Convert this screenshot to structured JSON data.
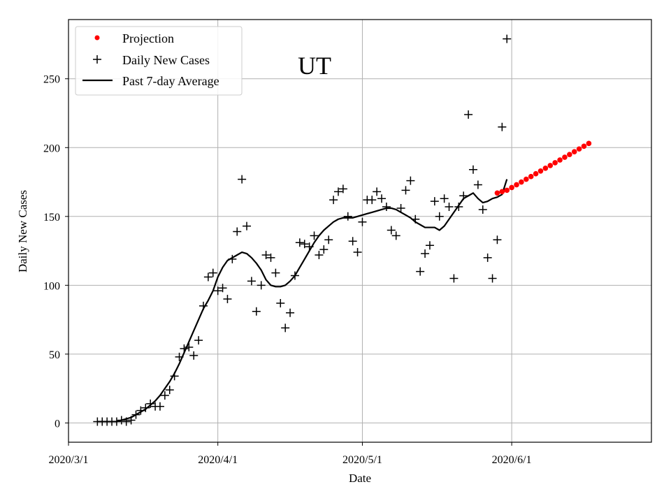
{
  "chart_data": {
    "type": "line",
    "annotation": "UT",
    "xlabel": "Date",
    "ylabel": "Daily New Cases",
    "x_range": [
      "2020-03-01",
      "2020-06-30"
    ],
    "ylim": [
      -14,
      293
    ],
    "x_ticks": [
      {
        "date": "2020-03-01",
        "label": "2020/3/1"
      },
      {
        "date": "2020-04-01",
        "label": "2020/4/1"
      },
      {
        "date": "2020-05-01",
        "label": "2020/5/1"
      },
      {
        "date": "2020-06-01",
        "label": "2020/6/1"
      }
    ],
    "y_ticks": [
      0,
      50,
      100,
      150,
      200,
      250
    ],
    "grid": true,
    "legend_position": "top-left",
    "series": [
      {
        "name": "Projection",
        "kind": "scatter",
        "marker": "dot",
        "color": "#ff0000",
        "points": [
          [
            "2020-05-29",
            167
          ],
          [
            "2020-05-30",
            168
          ],
          [
            "2020-05-31",
            169
          ],
          [
            "2020-06-01",
            171
          ],
          [
            "2020-06-02",
            173
          ],
          [
            "2020-06-03",
            175
          ],
          [
            "2020-06-04",
            177
          ],
          [
            "2020-06-05",
            179
          ],
          [
            "2020-06-06",
            181
          ],
          [
            "2020-06-07",
            183
          ],
          [
            "2020-06-08",
            185
          ],
          [
            "2020-06-09",
            187
          ],
          [
            "2020-06-10",
            189
          ],
          [
            "2020-06-11",
            191
          ],
          [
            "2020-06-12",
            193
          ],
          [
            "2020-06-13",
            195
          ],
          [
            "2020-06-14",
            197
          ],
          [
            "2020-06-15",
            199
          ],
          [
            "2020-06-16",
            201
          ],
          [
            "2020-06-17",
            203
          ]
        ]
      },
      {
        "name": "Daily New Cases",
        "kind": "scatter",
        "marker": "plus",
        "color": "#000000",
        "points": [
          [
            "2020-03-07",
            1
          ],
          [
            "2020-03-08",
            1
          ],
          [
            "2020-03-09",
            1
          ],
          [
            "2020-03-10",
            1
          ],
          [
            "2020-03-11",
            1
          ],
          [
            "2020-03-12",
            2
          ],
          [
            "2020-03-13",
            1
          ],
          [
            "2020-03-14",
            2
          ],
          [
            "2020-03-15",
            6
          ],
          [
            "2020-03-16",
            9
          ],
          [
            "2020-03-17",
            11
          ],
          [
            "2020-03-18",
            14
          ],
          [
            "2020-03-19",
            12
          ],
          [
            "2020-03-20",
            12
          ],
          [
            "2020-03-21",
            20
          ],
          [
            "2020-03-22",
            24
          ],
          [
            "2020-03-23",
            34
          ],
          [
            "2020-03-24",
            48
          ],
          [
            "2020-03-25",
            54
          ],
          [
            "2020-03-26",
            55
          ],
          [
            "2020-03-27",
            49
          ],
          [
            "2020-03-28",
            60
          ],
          [
            "2020-03-29",
            85
          ],
          [
            "2020-03-30",
            106
          ],
          [
            "2020-03-31",
            109
          ],
          [
            "2020-04-01",
            96
          ],
          [
            "2020-04-02",
            98
          ],
          [
            "2020-04-03",
            90
          ],
          [
            "2020-04-04",
            119
          ],
          [
            "2020-04-05",
            139
          ],
          [
            "2020-04-06",
            177
          ],
          [
            "2020-04-07",
            143
          ],
          [
            "2020-04-08",
            103
          ],
          [
            "2020-04-09",
            81
          ],
          [
            "2020-04-10",
            100
          ],
          [
            "2020-04-11",
            122
          ],
          [
            "2020-04-12",
            120
          ],
          [
            "2020-04-13",
            109
          ],
          [
            "2020-04-14",
            87
          ],
          [
            "2020-04-15",
            69
          ],
          [
            "2020-04-16",
            80
          ],
          [
            "2020-04-17",
            107
          ],
          [
            "2020-04-18",
            131
          ],
          [
            "2020-04-19",
            130
          ],
          [
            "2020-04-20",
            128
          ],
          [
            "2020-04-21",
            136
          ],
          [
            "2020-04-22",
            122
          ],
          [
            "2020-04-23",
            126
          ],
          [
            "2020-04-24",
            133
          ],
          [
            "2020-04-25",
            162
          ],
          [
            "2020-04-26",
            168
          ],
          [
            "2020-04-27",
            170
          ],
          [
            "2020-04-28",
            150
          ],
          [
            "2020-04-29",
            132
          ],
          [
            "2020-04-30",
            124
          ],
          [
            "2020-05-01",
            146
          ],
          [
            "2020-05-02",
            162
          ],
          [
            "2020-05-03",
            162
          ],
          [
            "2020-05-04",
            168
          ],
          [
            "2020-05-05",
            163
          ],
          [
            "2020-05-06",
            157
          ],
          [
            "2020-05-07",
            140
          ],
          [
            "2020-05-08",
            136
          ],
          [
            "2020-05-09",
            156
          ],
          [
            "2020-05-10",
            169
          ],
          [
            "2020-05-11",
            176
          ],
          [
            "2020-05-12",
            148
          ],
          [
            "2020-05-13",
            110
          ],
          [
            "2020-05-14",
            123
          ],
          [
            "2020-05-15",
            129
          ],
          [
            "2020-05-16",
            161
          ],
          [
            "2020-05-17",
            150
          ],
          [
            "2020-05-18",
            163
          ],
          [
            "2020-05-19",
            157
          ],
          [
            "2020-05-20",
            105
          ],
          [
            "2020-05-21",
            157
          ],
          [
            "2020-05-22",
            165
          ],
          [
            "2020-05-23",
            224
          ],
          [
            "2020-05-24",
            184
          ],
          [
            "2020-05-25",
            173
          ],
          [
            "2020-05-26",
            155
          ],
          [
            "2020-05-27",
            120
          ],
          [
            "2020-05-28",
            105
          ],
          [
            "2020-05-29",
            133
          ],
          [
            "2020-05-30",
            215
          ],
          [
            "2020-05-31",
            279
          ]
        ]
      },
      {
        "name": "Past 7-day Average",
        "kind": "line",
        "color": "#000000",
        "points": [
          [
            "2020-03-07",
            1
          ],
          [
            "2020-03-08",
            1
          ],
          [
            "2020-03-09",
            1
          ],
          [
            "2020-03-10",
            1
          ],
          [
            "2020-03-11",
            1
          ],
          [
            "2020-03-12",
            2
          ],
          [
            "2020-03-13",
            3
          ],
          [
            "2020-03-14",
            4
          ],
          [
            "2020-03-15",
            6
          ],
          [
            "2020-03-16",
            8
          ],
          [
            "2020-03-17",
            10
          ],
          [
            "2020-03-18",
            13
          ],
          [
            "2020-03-19",
            16
          ],
          [
            "2020-03-20",
            20
          ],
          [
            "2020-03-21",
            25
          ],
          [
            "2020-03-22",
            30
          ],
          [
            "2020-03-23",
            36
          ],
          [
            "2020-03-24",
            43
          ],
          [
            "2020-03-25",
            51
          ],
          [
            "2020-03-26",
            59
          ],
          [
            "2020-03-27",
            67
          ],
          [
            "2020-03-28",
            75
          ],
          [
            "2020-03-29",
            83
          ],
          [
            "2020-03-30",
            89
          ],
          [
            "2020-03-31",
            96
          ],
          [
            "2020-04-01",
            106
          ],
          [
            "2020-04-02",
            113
          ],
          [
            "2020-04-03",
            118
          ],
          [
            "2020-04-04",
            120
          ],
          [
            "2020-04-05",
            122
          ],
          [
            "2020-04-06",
            124
          ],
          [
            "2020-04-07",
            123
          ],
          [
            "2020-04-08",
            120
          ],
          [
            "2020-04-09",
            116
          ],
          [
            "2020-04-10",
            111
          ],
          [
            "2020-04-11",
            104
          ],
          [
            "2020-04-12",
            100
          ],
          [
            "2020-04-13",
            99
          ],
          [
            "2020-04-14",
            99
          ],
          [
            "2020-04-15",
            100
          ],
          [
            "2020-04-16",
            103
          ],
          [
            "2020-04-17",
            107
          ],
          [
            "2020-04-18",
            113
          ],
          [
            "2020-04-19",
            119
          ],
          [
            "2020-04-20",
            125
          ],
          [
            "2020-04-21",
            131
          ],
          [
            "2020-04-22",
            136
          ],
          [
            "2020-04-23",
            140
          ],
          [
            "2020-04-24",
            143
          ],
          [
            "2020-04-25",
            146
          ],
          [
            "2020-04-26",
            148
          ],
          [
            "2020-04-27",
            149
          ],
          [
            "2020-04-28",
            149
          ],
          [
            "2020-04-29",
            149
          ],
          [
            "2020-04-30",
            150
          ],
          [
            "2020-05-01",
            151
          ],
          [
            "2020-05-02",
            152
          ],
          [
            "2020-05-03",
            153
          ],
          [
            "2020-05-04",
            154
          ],
          [
            "2020-05-05",
            155
          ],
          [
            "2020-05-06",
            156
          ],
          [
            "2020-05-07",
            156
          ],
          [
            "2020-05-08",
            155
          ],
          [
            "2020-05-09",
            153
          ],
          [
            "2020-05-10",
            151
          ],
          [
            "2020-05-11",
            149
          ],
          [
            "2020-05-12",
            146
          ],
          [
            "2020-05-13",
            144
          ],
          [
            "2020-05-14",
            142
          ],
          [
            "2020-05-15",
            142
          ],
          [
            "2020-05-16",
            142
          ],
          [
            "2020-05-17",
            140
          ],
          [
            "2020-05-18",
            143
          ],
          [
            "2020-05-19",
            148
          ],
          [
            "2020-05-20",
            153
          ],
          [
            "2020-05-21",
            158
          ],
          [
            "2020-05-22",
            163
          ],
          [
            "2020-05-23",
            165
          ],
          [
            "2020-05-24",
            167
          ],
          [
            "2020-05-25",
            163
          ],
          [
            "2020-05-26",
            160
          ],
          [
            "2020-05-27",
            161
          ],
          [
            "2020-05-28",
            163
          ],
          [
            "2020-05-29",
            164
          ],
          [
            "2020-05-30",
            166
          ],
          [
            "2020-05-31",
            177
          ]
        ]
      }
    ]
  }
}
